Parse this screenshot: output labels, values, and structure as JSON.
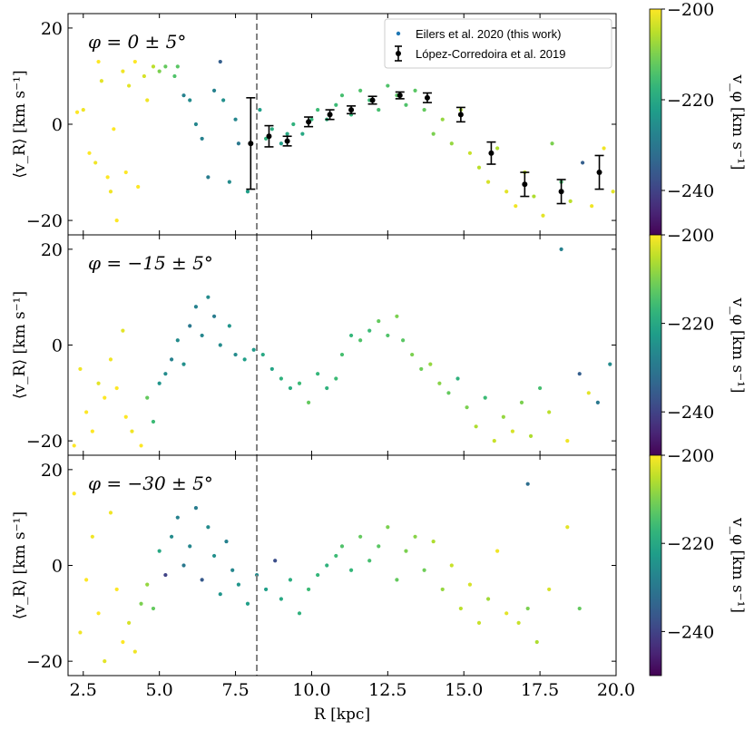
{
  "chart_data": {
    "type": "scatter",
    "xlabel": "R [kpc]",
    "xlim": [
      2.0,
      20.0
    ],
    "xticks": [
      "2.5",
      "5.0",
      "7.5",
      "10.0",
      "12.5",
      "15.0",
      "17.5",
      "20.0"
    ],
    "xtick_values": [
      2.5,
      5.0,
      7.5,
      10.0,
      12.5,
      15.0,
      17.5,
      20.0
    ],
    "ylabel": "⟨v_R⟩ [km s⁻¹]",
    "ylim": [
      -23,
      23
    ],
    "yticks": [
      20,
      0,
      -20
    ],
    "ytick_labels": [
      "20",
      "0",
      "−20"
    ],
    "reference_line": {
      "x": 8.2,
      "style": "dashed",
      "color": "#808080"
    },
    "colorbar": {
      "label": "v_φ [km s⁻¹]",
      "range": [
        -250,
        -200
      ],
      "colormap": "viridis",
      "ticks": [
        -200,
        -220,
        -240
      ],
      "tick_labels": [
        "−200",
        "−220",
        "−240"
      ]
    },
    "legend": {
      "placement": "top-right",
      "entries": [
        "Eilers et al. 2020 (this work)",
        "López-Corredoira et al. 2019"
      ],
      "colors": [
        "#1f77b4",
        "#000000"
      ]
    },
    "panels": [
      {
        "annotation": "φ = 0 ± 5°",
        "scatter": [
          [
            2.3,
            2.5,
            -200
          ],
          [
            2.5,
            3,
            -201
          ],
          [
            2.7,
            -6,
            -200
          ],
          [
            2.9,
            -8,
            -201
          ],
          [
            3.0,
            13,
            -200
          ],
          [
            3.1,
            9,
            -202
          ],
          [
            3.3,
            -11,
            -200
          ],
          [
            3.4,
            -14,
            -201
          ],
          [
            3.5,
            -1,
            -200
          ],
          [
            3.6,
            -20,
            -200
          ],
          [
            3.8,
            11,
            -201
          ],
          [
            3.9,
            -10,
            -200
          ],
          [
            4.0,
            8,
            -202
          ],
          [
            4.2,
            13,
            -200
          ],
          [
            4.3,
            -13,
            -200
          ],
          [
            4.5,
            10,
            -203
          ],
          [
            4.6,
            5,
            -201
          ],
          [
            4.8,
            12,
            -205
          ],
          [
            5.0,
            11,
            -210
          ],
          [
            5.2,
            12,
            -212
          ],
          [
            5.5,
            10,
            -214
          ],
          [
            5.6,
            12,
            -213
          ],
          [
            5.8,
            6,
            -228
          ],
          [
            6.0,
            5,
            -226
          ],
          [
            6.2,
            0,
            -227
          ],
          [
            6.4,
            -3,
            -228
          ],
          [
            6.6,
            -11,
            -229
          ],
          [
            6.8,
            7,
            -228
          ],
          [
            7.0,
            13,
            -235
          ],
          [
            7.1,
            5,
            -225
          ],
          [
            7.3,
            -12,
            -226
          ],
          [
            7.5,
            1,
            -227
          ],
          [
            7.6,
            -4,
            -230
          ],
          [
            7.9,
            -14,
            -222
          ],
          [
            8.3,
            3,
            -222
          ],
          [
            8.5,
            -3,
            -218
          ],
          [
            8.7,
            -1,
            -219
          ],
          [
            9.0,
            -4,
            -222
          ],
          [
            9.2,
            -2,
            -220
          ],
          [
            9.4,
            0,
            -218
          ],
          [
            9.7,
            -2,
            -220
          ],
          [
            10.0,
            1,
            -217
          ],
          [
            10.2,
            3,
            -216
          ],
          [
            10.5,
            1,
            -218
          ],
          [
            10.8,
            4,
            -216
          ],
          [
            11.0,
            6,
            -215
          ],
          [
            11.3,
            2,
            -217
          ],
          [
            11.6,
            7,
            -214
          ],
          [
            11.9,
            5,
            -216
          ],
          [
            12.2,
            3,
            -215
          ],
          [
            12.5,
            8,
            -214
          ],
          [
            12.8,
            6,
            -213
          ],
          [
            13.1,
            4,
            -214
          ],
          [
            13.4,
            7,
            -213
          ],
          [
            13.7,
            3,
            -212
          ],
          [
            14.0,
            -2,
            -210
          ],
          [
            14.3,
            1,
            -208
          ],
          [
            14.6,
            -4,
            -208
          ],
          [
            14.9,
            3,
            -206
          ],
          [
            15.2,
            -6,
            -204
          ],
          [
            15.5,
            -9,
            -205
          ],
          [
            15.8,
            -12,
            -203
          ],
          [
            16.1,
            -5,
            -206
          ],
          [
            16.4,
            -14,
            -202
          ],
          [
            16.7,
            -17,
            -201
          ],
          [
            17.0,
            -10,
            -205
          ],
          [
            17.3,
            -15,
            -206
          ],
          [
            17.6,
            -19,
            -202
          ],
          [
            17.9,
            -4,
            -210
          ],
          [
            18.2,
            -12,
            -215
          ],
          [
            18.5,
            -16,
            -205
          ],
          [
            18.9,
            -8,
            -235
          ],
          [
            19.2,
            -17,
            -201
          ],
          [
            19.6,
            -5,
            -201
          ],
          [
            19.9,
            -14,
            -202
          ]
        ],
        "errorbars": [
          {
            "R": 8.0,
            "vR": -4.0,
            "err": 9.5
          },
          {
            "R": 8.6,
            "vR": -2.5,
            "err": 2.2
          },
          {
            "R": 9.2,
            "vR": -3.5,
            "err": 1.0
          },
          {
            "R": 9.9,
            "vR": 0.5,
            "err": 1.0
          },
          {
            "R": 10.6,
            "vR": 2.0,
            "err": 1.0
          },
          {
            "R": 11.3,
            "vR": 3.0,
            "err": 0.8
          },
          {
            "R": 12.0,
            "vR": 5.0,
            "err": 0.8
          },
          {
            "R": 12.9,
            "vR": 6.0,
            "err": 0.7
          },
          {
            "R": 13.8,
            "vR": 5.5,
            "err": 1.0
          },
          {
            "R": 14.9,
            "vR": 2.0,
            "err": 1.5
          },
          {
            "R": 15.9,
            "vR": -6.0,
            "err": 2.3
          },
          {
            "R": 17.0,
            "vR": -12.5,
            "err": 2.5
          },
          {
            "R": 18.2,
            "vR": -14.0,
            "err": 2.5
          },
          {
            "R": 19.45,
            "vR": -10.0,
            "err": 3.5
          }
        ]
      },
      {
        "annotation": "φ = −15 ± 5°",
        "scatter": [
          [
            2.2,
            -21,
            -200
          ],
          [
            2.4,
            -5,
            -201
          ],
          [
            2.6,
            -14,
            -200
          ],
          [
            2.8,
            -18,
            -200
          ],
          [
            3.0,
            -8,
            -202
          ],
          [
            3.2,
            -11,
            -200
          ],
          [
            3.4,
            -3,
            -201
          ],
          [
            3.6,
            -9,
            -200
          ],
          [
            3.8,
            3,
            -202
          ],
          [
            3.9,
            -15,
            -200
          ],
          [
            4.1,
            -18,
            -201
          ],
          [
            4.4,
            -21,
            -200
          ],
          [
            4.6,
            -11,
            -212
          ],
          [
            4.8,
            -16,
            -216
          ],
          [
            5.0,
            -8,
            -224
          ],
          [
            5.2,
            -6,
            -226
          ],
          [
            5.4,
            -3,
            -228
          ],
          [
            5.6,
            1,
            -226
          ],
          [
            5.8,
            -4,
            -225
          ],
          [
            6.0,
            4,
            -230
          ],
          [
            6.2,
            8,
            -228
          ],
          [
            6.4,
            2,
            -227
          ],
          [
            6.6,
            10,
            -226
          ],
          [
            6.8,
            6,
            -229
          ],
          [
            7.0,
            0,
            -226
          ],
          [
            7.3,
            4,
            -224
          ],
          [
            7.5,
            -2,
            -226
          ],
          [
            7.8,
            -3,
            -222
          ],
          [
            8.1,
            -1,
            -223
          ],
          [
            8.4,
            -2,
            -220
          ],
          [
            8.7,
            -5,
            -221
          ],
          [
            9.0,
            -7,
            -218
          ],
          [
            9.3,
            -9,
            -219
          ],
          [
            9.6,
            -8,
            -216
          ],
          [
            9.9,
            -12,
            -212
          ],
          [
            10.2,
            -6,
            -217
          ],
          [
            10.5,
            -9,
            -218
          ],
          [
            10.8,
            -7,
            -216
          ],
          [
            11.0,
            -2,
            -215
          ],
          [
            11.3,
            2,
            -217
          ],
          [
            11.6,
            1,
            -214
          ],
          [
            11.9,
            3,
            -216
          ],
          [
            12.2,
            5,
            -212
          ],
          [
            12.5,
            2,
            -214
          ],
          [
            12.8,
            6,
            -210
          ],
          [
            13.0,
            1,
            -213
          ],
          [
            13.3,
            -2,
            -210
          ],
          [
            13.6,
            -5,
            -211
          ],
          [
            13.9,
            -4,
            -208
          ],
          [
            14.2,
            -8,
            -209
          ],
          [
            14.5,
            -10,
            -212
          ],
          [
            14.8,
            -7,
            -218
          ],
          [
            15.1,
            -13,
            -210
          ],
          [
            15.4,
            -17,
            -206
          ],
          [
            15.7,
            -11,
            -216
          ],
          [
            16.0,
            -20,
            -204
          ],
          [
            16.3,
            -15,
            -208
          ],
          [
            16.6,
            -18,
            -203
          ],
          [
            16.9,
            -12,
            -210
          ],
          [
            17.2,
            -19,
            -206
          ],
          [
            17.5,
            -9,
            -215
          ],
          [
            17.8,
            -14,
            -205
          ],
          [
            18.2,
            20,
            -228
          ],
          [
            18.4,
            -20,
            -201
          ],
          [
            18.8,
            -6,
            -235
          ],
          [
            19.1,
            -10,
            -202
          ],
          [
            19.4,
            -12,
            -230
          ],
          [
            19.8,
            -4,
            -226
          ]
        ]
      },
      {
        "annotation": "φ = −30 ± 5°",
        "scatter": [
          [
            2.2,
            15,
            -200
          ],
          [
            2.4,
            -14,
            -201
          ],
          [
            2.6,
            -3,
            -200
          ],
          [
            2.8,
            6,
            -201
          ],
          [
            3.0,
            -10,
            -200
          ],
          [
            3.2,
            -20,
            -202
          ],
          [
            3.4,
            11,
            -201
          ],
          [
            3.6,
            -5,
            -200
          ],
          [
            3.8,
            -16,
            -200
          ],
          [
            4.0,
            -12,
            -203
          ],
          [
            4.2,
            -18,
            -201
          ],
          [
            4.4,
            -8,
            -210
          ],
          [
            4.6,
            -4,
            -208
          ],
          [
            4.8,
            -9,
            -212
          ],
          [
            5.0,
            3,
            -220
          ],
          [
            5.2,
            -2,
            -240
          ],
          [
            5.4,
            6,
            -226
          ],
          [
            5.6,
            10,
            -228
          ],
          [
            5.8,
            0,
            -230
          ],
          [
            6.0,
            4,
            -227
          ],
          [
            6.2,
            12,
            -229
          ],
          [
            6.4,
            -3,
            -236
          ],
          [
            6.6,
            8,
            -226
          ],
          [
            6.8,
            2,
            -225
          ],
          [
            7.0,
            -6,
            -224
          ],
          [
            7.2,
            5,
            -228
          ],
          [
            7.4,
            -1,
            -227
          ],
          [
            7.6,
            -4,
            -224
          ],
          [
            7.9,
            -8,
            -222
          ],
          [
            8.2,
            -2,
            -226
          ],
          [
            8.5,
            -5,
            -222
          ],
          [
            8.8,
            1,
            -238
          ],
          [
            9.0,
            -7,
            -220
          ],
          [
            9.3,
            -3,
            -219
          ],
          [
            9.6,
            -10,
            -218
          ],
          [
            9.9,
            -5,
            -216
          ],
          [
            10.2,
            -2,
            -217
          ],
          [
            10.5,
            0,
            -218
          ],
          [
            10.8,
            2,
            -216
          ],
          [
            11.0,
            4,
            -214
          ],
          [
            11.3,
            -1,
            -217
          ],
          [
            11.6,
            6,
            -212
          ],
          [
            11.9,
            1,
            -215
          ],
          [
            12.2,
            4,
            -213
          ],
          [
            12.5,
            8,
            -210
          ],
          [
            12.8,
            -3,
            -212
          ],
          [
            13.1,
            3,
            -210
          ],
          [
            13.4,
            6,
            -209
          ],
          [
            13.7,
            -1,
            -211
          ],
          [
            14.0,
            5,
            -206
          ],
          [
            14.3,
            -5,
            -208
          ],
          [
            14.6,
            0,
            -204
          ],
          [
            14.9,
            -9,
            -205
          ],
          [
            15.2,
            -4,
            -203
          ],
          [
            15.5,
            -12,
            -204
          ],
          [
            15.8,
            -7,
            -207
          ],
          [
            16.1,
            3,
            -201
          ],
          [
            16.4,
            -10,
            -202
          ],
          [
            16.8,
            -12,
            -204
          ],
          [
            17.1,
            -9,
            -210
          ],
          [
            17.4,
            -16,
            -206
          ],
          [
            17.8,
            -5,
            -203
          ],
          [
            18.4,
            8,
            -202
          ],
          [
            18.8,
            -9,
            -212
          ],
          [
            17.1,
            17,
            -232
          ]
        ]
      }
    ]
  }
}
